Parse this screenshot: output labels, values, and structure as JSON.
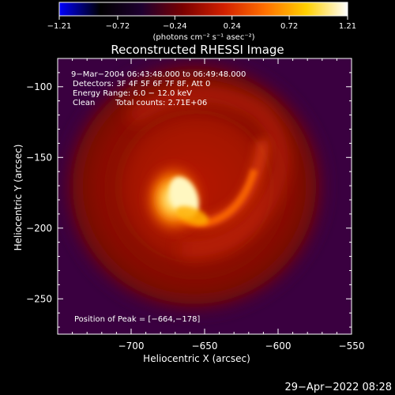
{
  "chart_data": {
    "type": "heatmap",
    "title": "Reconstructed RHESSI Image",
    "xlabel": "Heliocentric X (arcsec)",
    "ylabel": "Heliocentric Y (arcsec)",
    "xlim": [
      -750,
      -550
    ],
    "ylim": [
      -275,
      -80
    ],
    "x_ticks": [
      -700,
      -650,
      -600,
      -550
    ],
    "x_tick_labels": [
      "−700",
      "−650",
      "−600",
      "−550"
    ],
    "y_ticks": [
      -100,
      -150,
      -200,
      -250
    ],
    "y_tick_labels": [
      "−100",
      "−150",
      "−200",
      "−250"
    ],
    "colorbar": {
      "min": -1.21,
      "max": 1.21,
      "ticks": [
        -1.21,
        -0.72,
        -0.24,
        0.24,
        0.72,
        1.21
      ],
      "tick_labels": [
        "−1.21",
        "−0.72",
        "−0.24",
        "0.24",
        "0.72",
        "1.21"
      ],
      "units": "(photons cm⁻² s⁻¹ asec⁻²)",
      "colors": [
        "#0000ff",
        "#000000",
        "#1e0030",
        "#7a0000",
        "#d22000",
        "#ff7000",
        "#ffd000",
        "#ffffff"
      ]
    },
    "annotations": {
      "time_range": "9−Mar−2004 06:43:48.000 to 06:49:48.000",
      "detectors": "Detectors: 3F 4F 5F 6F 7F 8F, Att 0",
      "energy": "Energy Range: 6.0 − 12.0 keV",
      "method": "Clean",
      "counts": "Total counts: 2.71E+06",
      "peak": "Position of Peak = [−664,−178]"
    },
    "peak_position": [
      -664,
      -178
    ],
    "background_color": "#3a0040",
    "grid": false
  },
  "footer": {
    "timestamp": "29−Apr−2022 08:28"
  }
}
